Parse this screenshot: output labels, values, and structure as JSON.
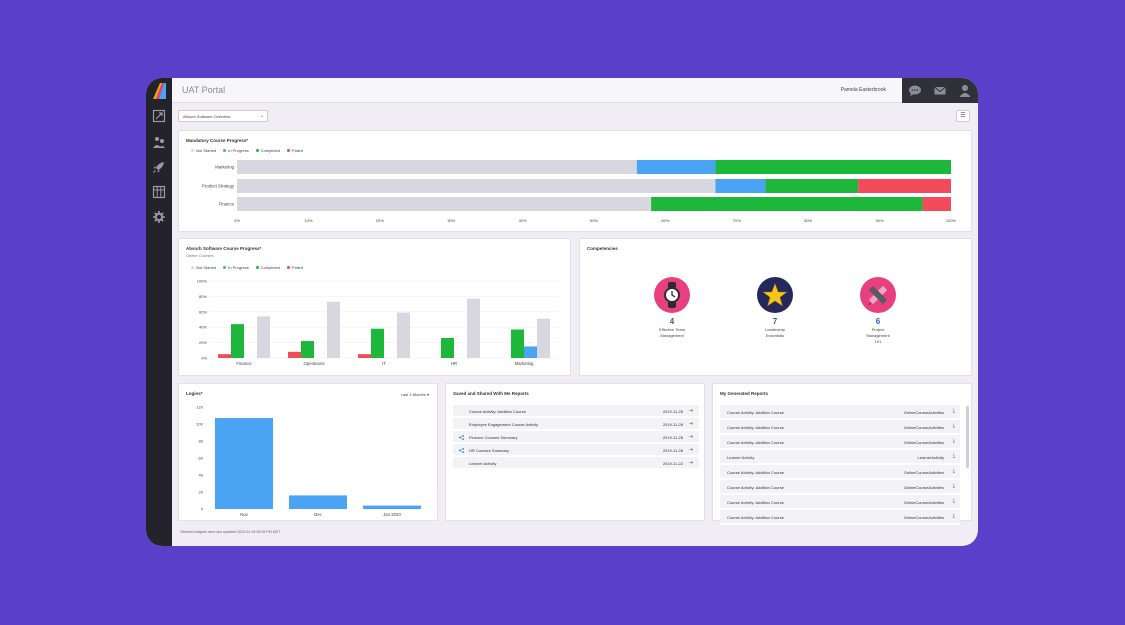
{
  "app": {
    "title": "UAT Portal",
    "user_name": "Pamela Easterbrook",
    "report_select": "Absorb Software Overview",
    "footnote": "*Marked widgets were last updated 2020-01-09 06:09 PM MST"
  },
  "sidebar": {
    "icons": [
      "dashboard-icon",
      "users-icon",
      "rocket-icon",
      "grid-icon",
      "gear-icon"
    ]
  },
  "header_icons": [
    "chat-icon",
    "mail-icon",
    "user-icon"
  ],
  "legend": {
    "not_started": "Not Started",
    "in_progress": "In Progress",
    "completed": "Completed",
    "failed": "Failed"
  },
  "colors": {
    "not_started": "#d8d7df",
    "in_progress": "#4ba3f4",
    "completed": "#1db83b",
    "failed": "#f24b5c",
    "accent_blue": "#2f5fa8",
    "comp_pink": "#e8407f",
    "comp_navy": "#232a5a"
  },
  "mandatory": {
    "title": "Mandatory Course Progress*"
  },
  "absorb": {
    "title": "Absorb Software Course Progress*",
    "subtitle": "Online Courses"
  },
  "competencies": {
    "title": "Competencies",
    "items": [
      {
        "count": "4",
        "label1": "Effective Team",
        "label2": "Management",
        "label3": "",
        "color": "#e8407f",
        "icon": "watch-icon"
      },
      {
        "count": "7",
        "label1": "Leadership",
        "label2": "Essentials",
        "label3": "",
        "color": "#232a5a",
        "icon": "star-icon"
      },
      {
        "count": "6",
        "label1": "Project",
        "label2": "Management",
        "label3": "101",
        "color": "#e8407f",
        "icon": "pencil-ruler-icon"
      }
    ]
  },
  "logins": {
    "title": "Logins*",
    "range": "Last 3 Months"
  },
  "saved": {
    "title": "Saved and Shared With Me Reports",
    "rows": [
      {
        "name": "Course Activity: Addition Course",
        "date": "2019-11-28",
        "shared": false
      },
      {
        "name": "Employee Engagement Course Activity",
        "date": "2019-11-28",
        "shared": false
      },
      {
        "name": "Finance Courses Summary",
        "date": "2019-11-28",
        "shared": true
      },
      {
        "name": "HR Courses Summary",
        "date": "2019-11-28",
        "shared": true
      },
      {
        "name": "Learner Activity",
        "date": "2019-11-22",
        "shared": false
      }
    ]
  },
  "generated": {
    "title": "My Generated Reports",
    "rows": [
      {
        "name": "Course Activity: Addition Course",
        "type": "OnlineCourseActivities"
      },
      {
        "name": "Course Activity: Addition Course",
        "type": "OnlineCourseActivities"
      },
      {
        "name": "Course Activity: Addition Course",
        "type": "OnlineCourseActivities"
      },
      {
        "name": "Learner Activity",
        "type": "LearnerActivity"
      },
      {
        "name": "Course Activity: Addition Course",
        "type": "OnlineCourseActivities"
      },
      {
        "name": "Course Activity: Addition Course",
        "type": "OnlineCourseActivities"
      },
      {
        "name": "Course Activity: Addition Course",
        "type": "OnlineCourseActivities"
      },
      {
        "name": "Course Activity: Addition Course",
        "type": "OnlineCourseActivities"
      }
    ]
  },
  "chart_data": [
    {
      "type": "bar",
      "orientation": "horizontal-stacked",
      "title": "Mandatory Course Progress*",
      "categories": [
        "Marketing",
        "Product Strategy",
        "Finance"
      ],
      "series": [
        {
          "name": "Not Started",
          "values": [
            56,
            67,
            58
          ]
        },
        {
          "name": "In Progress",
          "values": [
            11,
            7,
            0
          ]
        },
        {
          "name": "Completed",
          "values": [
            33,
            13,
            38
          ]
        },
        {
          "name": "Failed",
          "values": [
            0,
            13,
            4
          ]
        }
      ],
      "x_ticks": [
        "0%",
        "10%",
        "20%",
        "30%",
        "40%",
        "50%",
        "60%",
        "70%",
        "80%",
        "90%",
        "100%"
      ],
      "xlim": [
        0,
        100
      ]
    },
    {
      "type": "bar",
      "orientation": "vertical-grouped",
      "title": "Absorb Software Course Progress*",
      "subtitle": "Online Courses",
      "categories": [
        "Finance",
        "Operations",
        "IT",
        "HR",
        "Marketing"
      ],
      "series": [
        {
          "name": "Failed",
          "values": [
            5,
            8,
            5,
            0,
            0
          ]
        },
        {
          "name": "Completed",
          "values": [
            44,
            22,
            38,
            26,
            37
          ]
        },
        {
          "name": "In Progress",
          "values": [
            0,
            0,
            0,
            0,
            15
          ]
        },
        {
          "name": "Not Started",
          "values": [
            54,
            73,
            59,
            77,
            51
          ]
        }
      ],
      "y_ticks": [
        "0%",
        "20%",
        "40%",
        "60%",
        "80%",
        "100%"
      ],
      "ylim": [
        0,
        100
      ]
    },
    {
      "type": "bar",
      "title": "Logins*",
      "categories": [
        "Nov",
        "Dec",
        "Jan 2020"
      ],
      "values": [
        107,
        16,
        4
      ],
      "y_ticks": [
        "0",
        "20",
        "40",
        "60",
        "80",
        "100",
        "120"
      ],
      "ylim": [
        0,
        120
      ]
    }
  ]
}
